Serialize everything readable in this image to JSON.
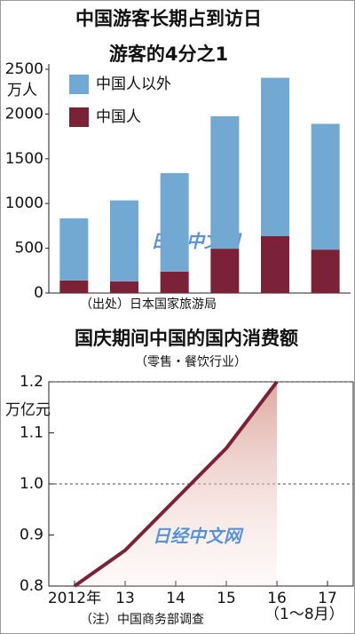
{
  "chart_data": [
    {
      "type": "stacked-bar",
      "title": [
        "中国游客长期占到访日",
        "游客的4分之1"
      ],
      "y_label": "万人",
      "categories": [
        null,
        null,
        null,
        null,
        null,
        null
      ],
      "series": [
        {
          "name": "中国人",
          "color": "#7b2238",
          "values": [
            140,
            130,
            240,
            495,
            635,
            485
          ]
        },
        {
          "name": "中国人以外",
          "color": "#72a9d2",
          "values": [
            695,
            905,
            1100,
            1480,
            1770,
            1405
          ]
        }
      ],
      "ylim": [
        0,
        2500
      ],
      "yticks": [
        0,
        500,
        1000,
        1500,
        2000,
        2500
      ],
      "note": "（出处）日本国家旅游局",
      "watermark": "日经中文网"
    },
    {
      "type": "area-line",
      "title": "国庆期间中国的国内消费额",
      "subtitle": "（零售・餐饮行业）",
      "y_label": "万亿元",
      "categories": [
        "2012年",
        "13",
        "14",
        "15",
        "16",
        "17"
      ],
      "values": [
        0.8,
        0.87,
        0.97,
        1.07,
        1.2,
        null
      ],
      "color": "#7b2238",
      "ylim": [
        0.8,
        1.2
      ],
      "yticks": [
        0.8,
        0.9,
        {
          "value": 1,
          "label": "1.0"
        },
        1.1,
        1.2
      ],
      "dashed_grid": [
        {
          "value": 1,
          "label": "1.0"
        },
        1.2
      ],
      "note": "（注）中国商务部调查",
      "annotation": "（1～8月）",
      "watermark": "日经中文网"
    }
  ]
}
